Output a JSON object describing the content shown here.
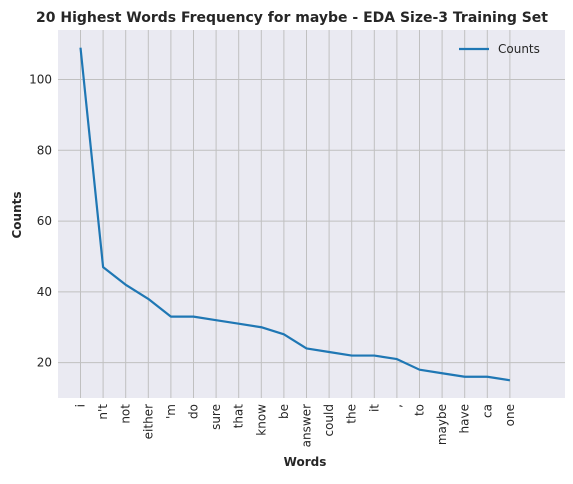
{
  "chart_data": {
    "type": "line",
    "title": "20 Highest Words Frequency for maybe - EDA Size-3 Training Set",
    "xlabel": "Words",
    "ylabel": "Counts",
    "categories": [
      "i",
      "n't",
      "not",
      "either",
      "'m",
      "do",
      "sure",
      "that",
      "know",
      "be",
      "answer",
      "could",
      "the",
      "it",
      ",",
      "to",
      "maybe",
      "have",
      "ca",
      "one"
    ],
    "series": [
      {
        "name": "Counts",
        "color": "#1f77b4",
        "values": [
          109,
          47,
          42,
          38,
          33,
          33,
          32,
          31,
          30,
          28,
          24,
          23,
          22,
          22,
          21,
          18,
          17,
          16,
          16,
          15
        ]
      }
    ],
    "ylim": [
      10,
      114
    ],
    "yticks": [
      20,
      40,
      60,
      80,
      100
    ],
    "grid": true,
    "legend_position": "top-right",
    "background_color": "#eaeaf2",
    "grid_color": "#c0c0c0"
  }
}
